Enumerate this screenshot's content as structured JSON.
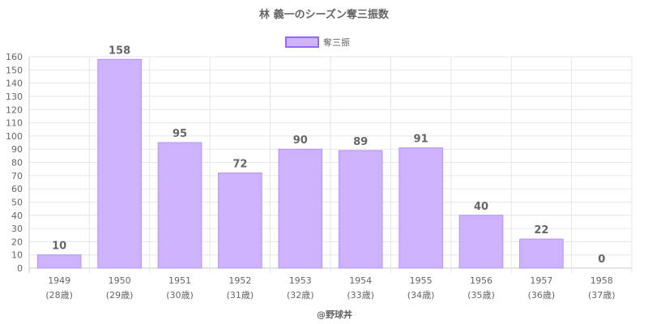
{
  "chart_data": {
    "type": "bar",
    "title": "林 義一のシーズン奪三振数",
    "categories": [
      "1949",
      "1950",
      "1951",
      "1952",
      "1953",
      "1954",
      "1955",
      "1956",
      "1957",
      "1958"
    ],
    "category_sublabels": [
      "(28歳)",
      "(29歳)",
      "(30歳)",
      "(31歳)",
      "(32歳)",
      "(33歳)",
      "(34歳)",
      "(35歳)",
      "(36歳)",
      "(37歳)"
    ],
    "series": [
      {
        "name": "奪三振",
        "values": [
          10,
          158,
          95,
          72,
          90,
          89,
          91,
          40,
          22,
          0
        ]
      }
    ],
    "ylim": [
      0,
      160
    ],
    "yticks": [
      0,
      10,
      20,
      30,
      40,
      50,
      60,
      70,
      80,
      90,
      100,
      110,
      120,
      130,
      140,
      150,
      160
    ],
    "grid": true,
    "legend_position": "top-center",
    "colors": {
      "bar_fill": "#cdb3ff",
      "bar_stroke": "#b490ff",
      "legend_fill": "#cdb3ff",
      "legend_stroke": "#9966ff",
      "grid": "#e6e6e6",
      "axis": "#c8c8c8",
      "text": "#666666"
    }
  },
  "credit": "@野球丼"
}
